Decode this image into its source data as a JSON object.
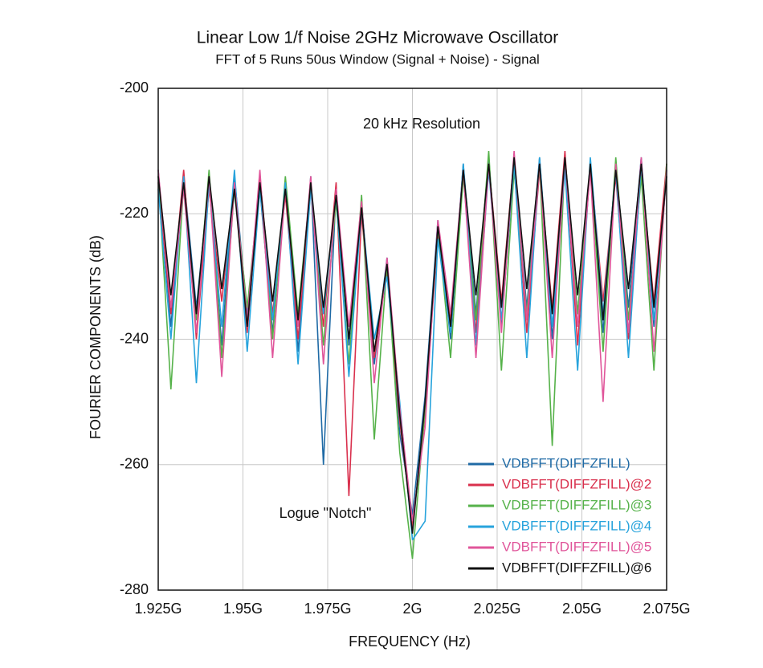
{
  "chart_data": {
    "type": "line",
    "title": "Linear Low 1/f Noise 2GHz Microwave Oscillator",
    "subtitle": "FFT of 5 Runs 50us Window (Signal + Noise) - Signal",
    "x_label": "FREQUENCY  (Hz)",
    "y_label": "FOURIER COMPONENTS  (dB)",
    "annotations": [
      "20 kHz Resolution",
      "Logue \"Notch\""
    ],
    "xlim": [
      1925000000,
      2075000000
    ],
    "xticks": [
      {
        "value": 1925000000,
        "label": "1.925G"
      },
      {
        "value": 1950000000,
        "label": "1.95G"
      },
      {
        "value": 1975000000,
        "label": "1.975G"
      },
      {
        "value": 2000000000,
        "label": "2G"
      },
      {
        "value": 2025000000,
        "label": "2.025G"
      },
      {
        "value": 2050000000,
        "label": "2.05G"
      },
      {
        "value": 2075000000,
        "label": "2.075G"
      }
    ],
    "ylim": [
      -280,
      -200
    ],
    "yticks": [
      -200,
      -220,
      -240,
      -260,
      -280
    ],
    "grid": true,
    "legend": "lower right",
    "x": [
      1925000000,
      1928750000,
      1932500000,
      1936250000,
      1940000000,
      1943750000,
      1947500000,
      1951250000,
      1955000000,
      1958750000,
      1962500000,
      1966250000,
      1970000000,
      1973750000,
      1977500000,
      1981250000,
      1985000000,
      1988750000,
      1992500000,
      1996250000,
      2000000000,
      2003750000,
      2007500000,
      2011250000,
      2015000000,
      2018750000,
      2022500000,
      2026250000,
      2030000000,
      2033750000,
      2037500000,
      2041250000,
      2045000000,
      2048750000,
      2052500000,
      2056250000,
      2060000000,
      2063750000,
      2067500000,
      2071250000,
      2075000000
    ],
    "series": [
      {
        "name": "VDBFFT(DIFFZFILL)",
        "color": "#1f6aa5",
        "values": [
          -213,
          -238,
          -214,
          -235,
          -215,
          -241,
          -214,
          -236,
          -216,
          -239,
          -215,
          -242,
          -214,
          -260,
          -216,
          -241,
          -218,
          -244,
          -227,
          -255,
          -268,
          -249,
          -221,
          -240,
          -212,
          -236,
          -211,
          -238,
          -212,
          -235,
          -211,
          -240,
          -212,
          -236,
          -213,
          -239,
          -212,
          -235,
          -211,
          -238,
          -213
        ]
      },
      {
        "name": "VDBFFT(DIFFZFILL)@2",
        "color": "#d9304d",
        "values": [
          -215,
          -236,
          -213,
          -240,
          -216,
          -234,
          -215,
          -239,
          -214,
          -236,
          -217,
          -240,
          -216,
          -238,
          -215,
          -265,
          -220,
          -243,
          -229,
          -253,
          -270,
          -252,
          -223,
          -237,
          -213,
          -239,
          -212,
          -234,
          -211,
          -239,
          -213,
          -235,
          -210,
          -241,
          -212,
          -234,
          -214,
          -240,
          -213,
          -234,
          -212
        ]
      },
      {
        "name": "VDBFFT(DIFFZFILL)@3",
        "color": "#56b24a",
        "values": [
          -214,
          -248,
          -215,
          -237,
          -213,
          -243,
          -216,
          -235,
          -215,
          -240,
          -214,
          -236,
          -215,
          -241,
          -218,
          -244,
          -217,
          -256,
          -228,
          -258,
          -275,
          -251,
          -222,
          -243,
          -214,
          -237,
          -210,
          -245,
          -213,
          -236,
          -212,
          -257,
          -211,
          -236,
          -212,
          -242,
          -211,
          -237,
          -214,
          -245,
          -212
        ]
      },
      {
        "name": "VDBFFT(DIFFZFILL)@4",
        "color": "#27a3dc",
        "values": [
          -216,
          -240,
          -214,
          -247,
          -215,
          -238,
          -213,
          -242,
          -216,
          -237,
          -215,
          -244,
          -216,
          -236,
          -217,
          -246,
          -219,
          -240,
          -230,
          -250,
          -272,
          -269,
          -224,
          -239,
          -212,
          -241,
          -213,
          -237,
          -212,
          -243,
          -211,
          -238,
          -213,
          -245,
          -211,
          -236,
          -213,
          -243,
          -212,
          -237,
          -214
        ]
      },
      {
        "name": "VDBFFT(DIFFZFILL)@5",
        "color": "#e0559a",
        "values": [
          -213,
          -235,
          -216,
          -239,
          -214,
          -246,
          -215,
          -237,
          -213,
          -243,
          -216,
          -238,
          -214,
          -244,
          -216,
          -238,
          -218,
          -247,
          -227,
          -251,
          -269,
          -254,
          -221,
          -236,
          -213,
          -243,
          -212,
          -239,
          -210,
          -237,
          -212,
          -243,
          -211,
          -238,
          -213,
          -250,
          -212,
          -239,
          -211,
          -242,
          -213
        ]
      },
      {
        "name": "VDBFFT(DIFFZFILL)@6",
        "color": "#111111",
        "values": [
          -214,
          -233,
          -215,
          -236,
          -214,
          -232,
          -216,
          -238,
          -215,
          -234,
          -216,
          -237,
          -215,
          -235,
          -217,
          -240,
          -219,
          -242,
          -228,
          -252,
          -271,
          -250,
          -222,
          -238,
          -213,
          -233,
          -212,
          -235,
          -211,
          -232,
          -212,
          -236,
          -211,
          -233,
          -212,
          -237,
          -213,
          -232,
          -212,
          -235,
          -214
        ]
      }
    ]
  }
}
